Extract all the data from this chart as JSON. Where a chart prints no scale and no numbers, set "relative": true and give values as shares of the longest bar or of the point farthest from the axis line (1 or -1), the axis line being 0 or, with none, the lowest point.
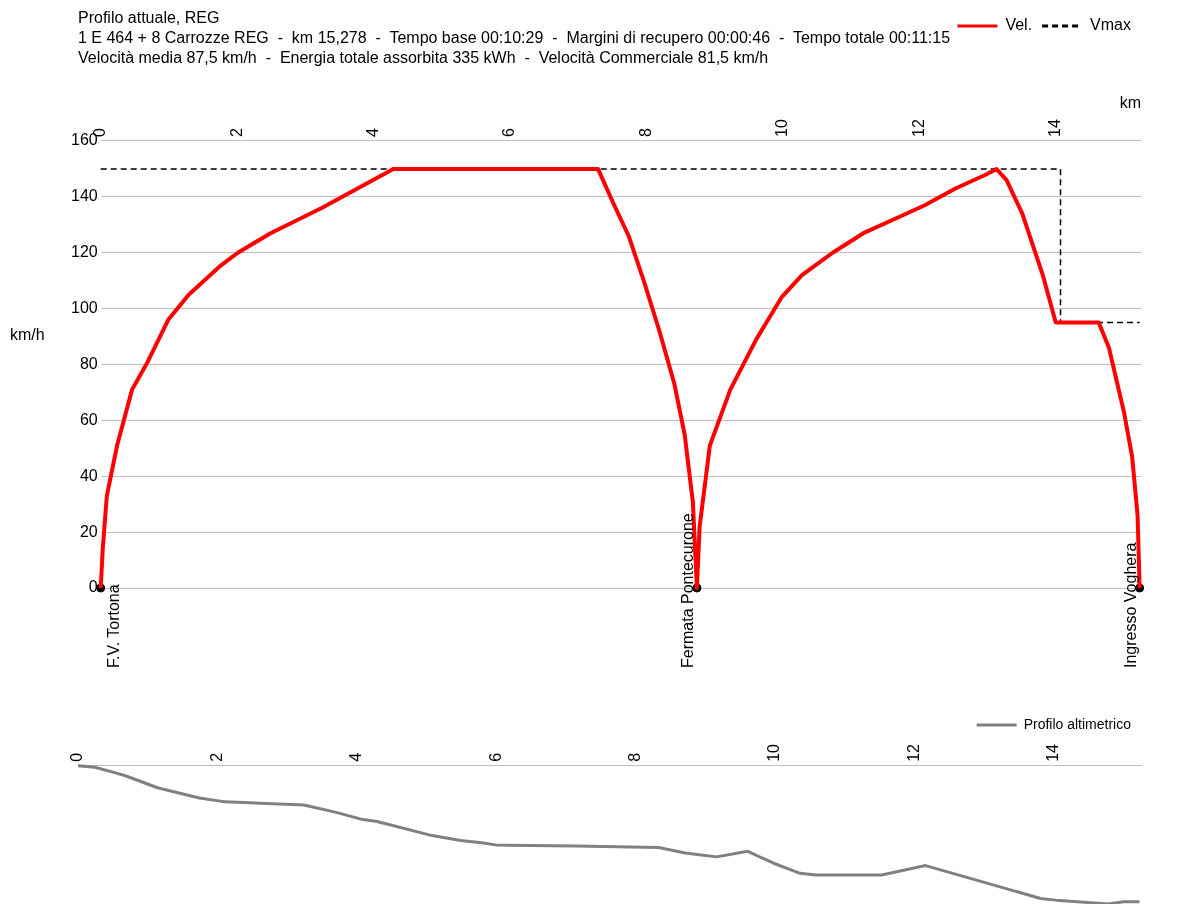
{
  "chart_data": [
    {
      "type": "line",
      "title": "Profilo attuale, REG",
      "subtitle": "1 E 464 + 8 Carrozze REG  -  km 15,278  -  Tempo base 00:10:29  -  Margini di recupero 00:00:46  -  Tempo totale 00:11:15\nVelocità media 87,5 km/h  -  Energia totale assorbita 335 kWh  -  Velocità Commerciale 81,5 km/h",
      "xlabel": "km",
      "ylabel": "km/h",
      "xlim": [
        0,
        15.25
      ],
      "xticks": [
        0,
        2,
        4,
        6,
        8,
        10,
        12,
        14
      ],
      "ylim": [
        0,
        160
      ],
      "yticks": [
        0,
        20,
        40,
        60,
        80,
        100,
        120,
        140,
        160
      ],
      "grid": "y",
      "legend": "top right",
      "series": [
        {
          "name": "Vel.",
          "color": "#ff0000",
          "x": [
            0,
            0.03,
            0.09,
            0.24,
            0.46,
            0.69,
            0.99,
            1.29,
            1.74,
            2.01,
            2.49,
            3.24,
            3.69,
            4.29,
            7.29,
            7.51,
            7.74,
            7.96,
            8.19,
            8.41,
            8.56,
            8.68,
            8.74,
            8.78,
            8.93,
            9.23,
            9.61,
            9.98,
            10.28,
            10.73,
            11.18,
            11.63,
            12.08,
            12.53,
            12.98,
            13.13,
            13.28,
            13.51,
            13.81,
            14.0,
            14.63,
            14.78,
            15.0,
            15.12,
            15.2,
            15.23
          ],
          "values": [
            0,
            14,
            33,
            51,
            71,
            81,
            96,
            105,
            115,
            120,
            127,
            136,
            142,
            150,
            150,
            138,
            126,
            110,
            92,
            73,
            55,
            31,
            0,
            22,
            51,
            71,
            89,
            104,
            112,
            120,
            127,
            132,
            137,
            143,
            148,
            150,
            146,
            134,
            112,
            95,
            95,
            86,
            63,
            47,
            26,
            0
          ]
        },
        {
          "name": "Vmax",
          "color": "#000000",
          "line_style": "dashed",
          "x": [
            0,
            14.07,
            14.07,
            15.23
          ],
          "values": [
            150,
            150,
            95,
            95
          ]
        },
        {
          "type": "scatter",
          "color": "#000000",
          "marker": "circle",
          "x": [
            0,
            8.74,
            15.23
          ],
          "values": [
            0,
            0,
            0
          ]
        }
      ],
      "annotations": [
        {
          "text": "F.V. Tortona",
          "x": 0,
          "y": 0
        },
        {
          "text": "Fermata Pontecurone",
          "x": 8.74,
          "y": 0
        },
        {
          "text": "Ingresso Voghera",
          "x": 15.23,
          "y": 0
        }
      ]
    },
    {
      "type": "line",
      "relative": true,
      "xlim": [
        0,
        15.25
      ],
      "xticks": [
        0,
        2,
        4,
        6,
        8,
        10,
        12,
        14
      ],
      "tick_labels": "x",
      "legend": "top right",
      "series": [
        {
          "name": "Profilo altimetrico",
          "color": "#808080",
          "x": [
            0,
            0.24,
            0.54,
            0.69,
            1.14,
            1.74,
            2.11,
            3.24,
            3.69,
            4.06,
            4.29,
            5.04,
            5.49,
            5.79,
            6.01,
            7.14,
            8.33,
            8.71,
            9.16,
            9.61,
            9.98,
            10.36,
            10.58,
            11.53,
            12.16,
            13.81,
            14.03,
            14.78,
            15.0,
            15.23
          ],
          "values": [
            1,
            0.989,
            0.949,
            0.926,
            0.841,
            0.767,
            0.739,
            0.716,
            0.665,
            0.614,
            0.597,
            0.5,
            0.46,
            0.443,
            0.426,
            0.42,
            0.409,
            0.369,
            0.341,
            0.381,
            0.295,
            0.222,
            0.21,
            0.21,
            0.278,
            0.04,
            0.028,
            0,
            0.017,
            0.017
          ]
        }
      ]
    }
  ]
}
